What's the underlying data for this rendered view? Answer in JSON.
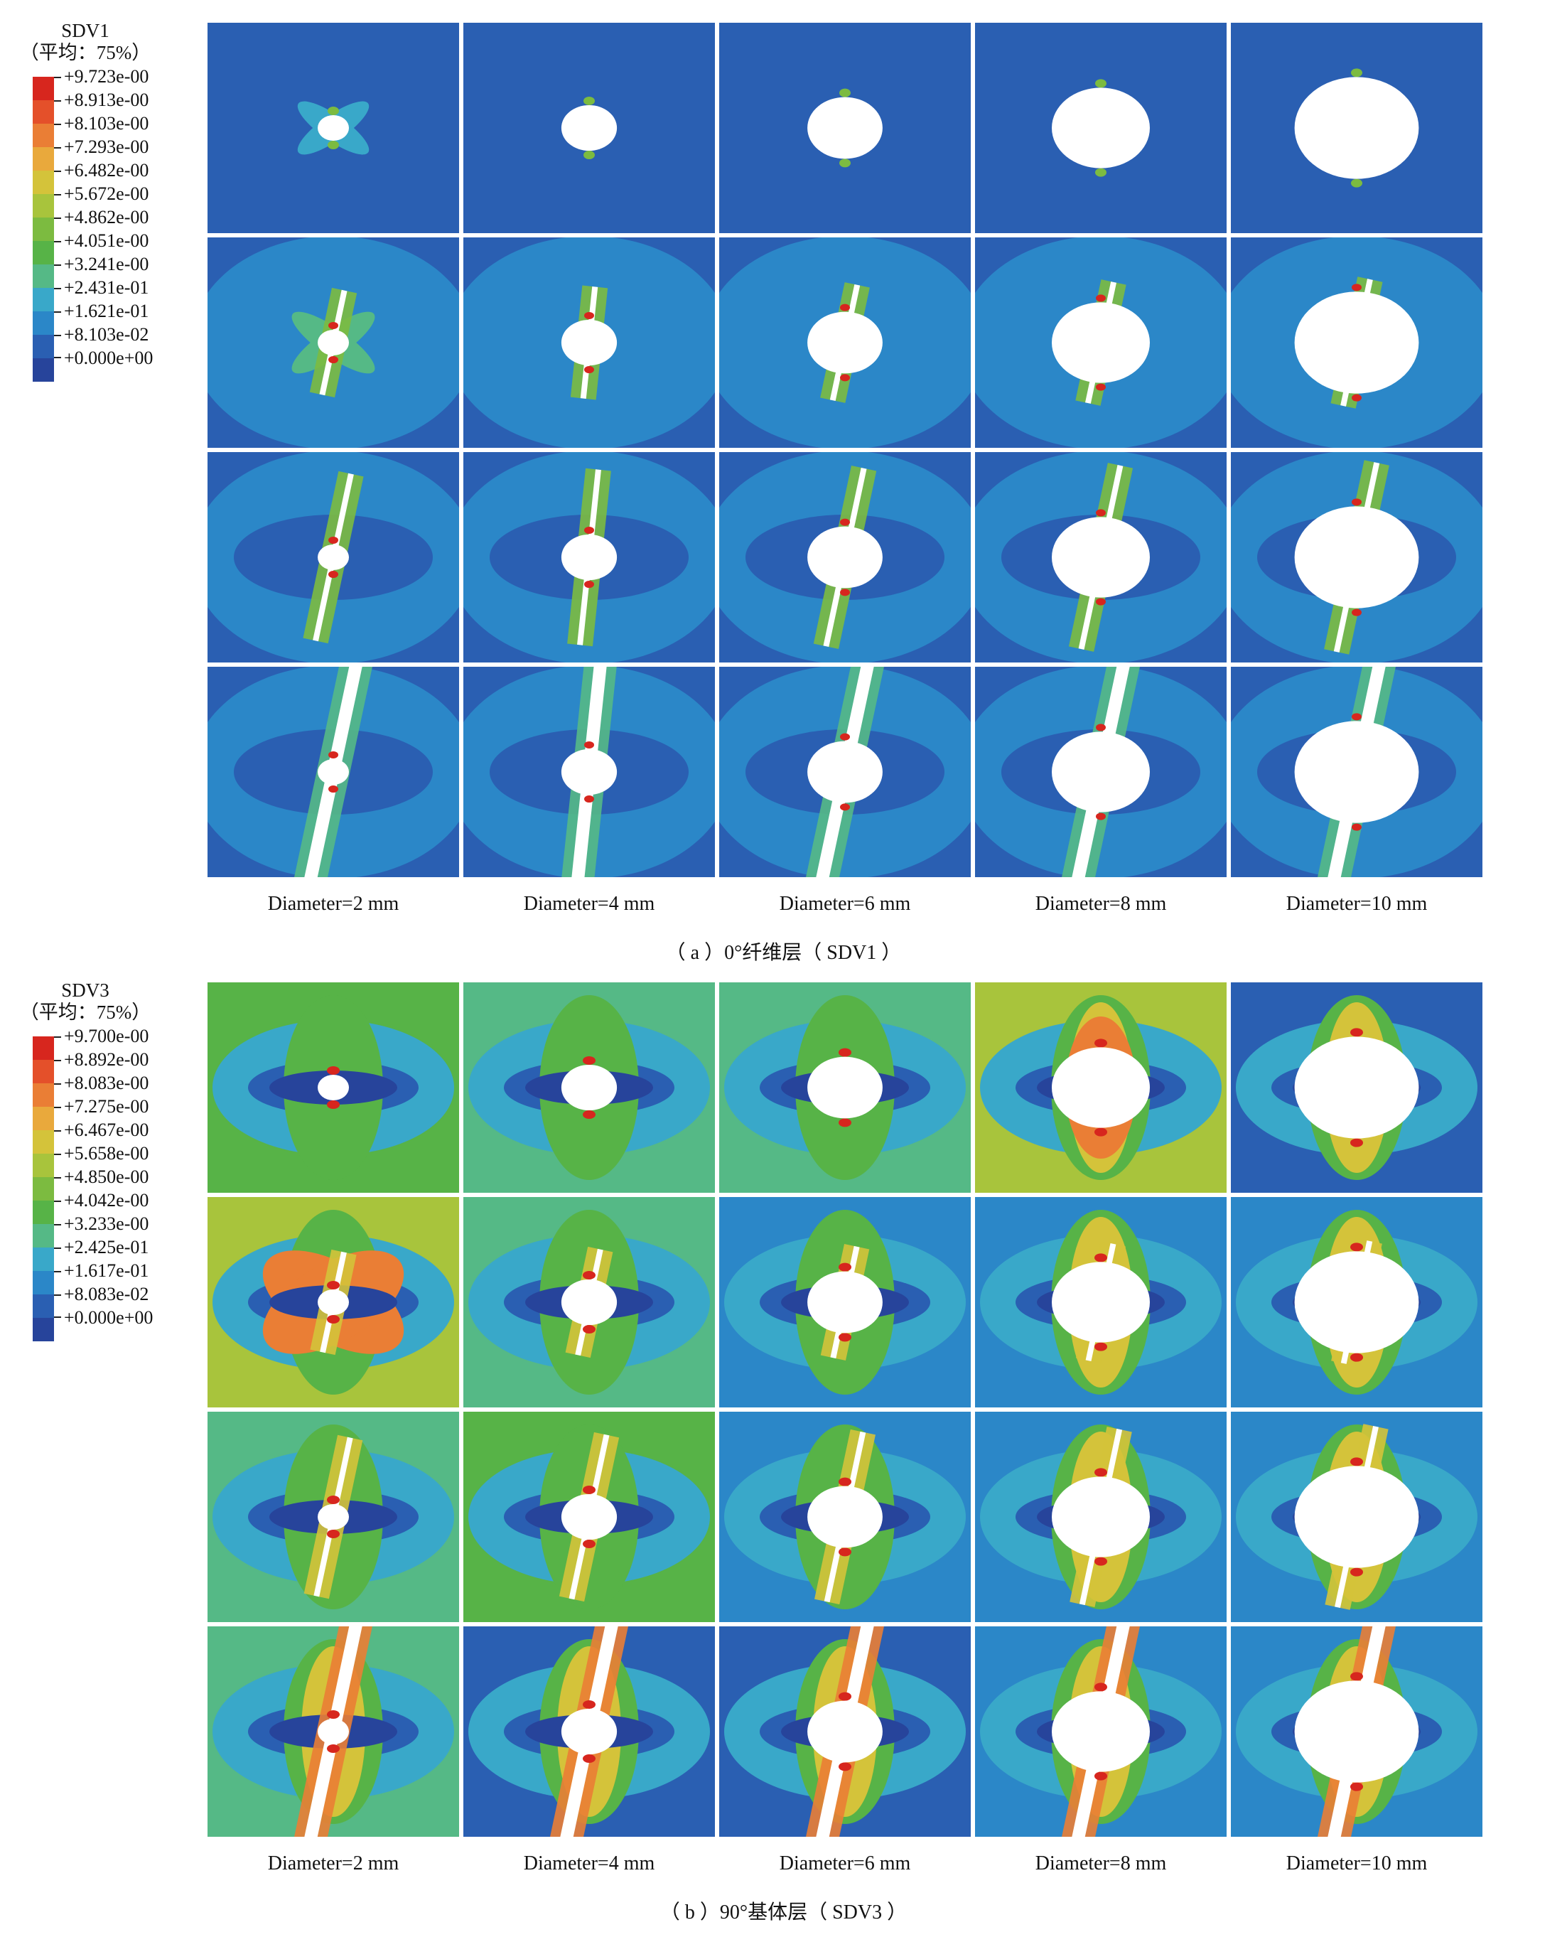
{
  "panels": [
    {
      "id": "a",
      "legend": {
        "name": "SDV1",
        "subtitle": "（平均：75%）",
        "values": [
          "+9.723e-00",
          "+8.913e-00",
          "+8.103e-00",
          "+7.293e-00",
          "+6.482e-00",
          "+5.672e-00",
          "+4.862e-00",
          "+4.051e-00",
          "+3.241e-00",
          "+2.431e-01",
          "+1.621e-01",
          "+8.103e-02",
          "+0.000e+00"
        ]
      },
      "columns": [
        "Diameter=2 mm",
        "Diameter=4 mm",
        "Diameter=6 mm",
        "Diameter=8 mm",
        "Diameter=10 mm"
      ],
      "caption": "（ a ）0°纤维层（ SDV1 ）"
    },
    {
      "id": "b",
      "legend": {
        "name": "SDV3",
        "subtitle": "（平均：75%）",
        "values": [
          "+9.700e-00",
          "+8.892e-00",
          "+8.083e-00",
          "+7.275e-00",
          "+6.467e-00",
          "+5.658e-00",
          "+4.850e-00",
          "+4.042e-00",
          "+3.233e-00",
          "+2.425e-01",
          "+1.617e-01",
          "+8.083e-02",
          "+0.000e+00"
        ]
      },
      "columns": [
        "Diameter=2 mm",
        "Diameter=4 mm",
        "Diameter=6 mm",
        "Diameter=8 mm",
        "Diameter=10 mm"
      ],
      "caption": "（ b ）90°基体层（ SDV3 ）"
    }
  ],
  "colormap": [
    "#d7261e",
    "#e4502a",
    "#ea7e35",
    "#e9a93c",
    "#d4c33a",
    "#a8c43c",
    "#7cbb40",
    "#57b347",
    "#55b986",
    "#39a8c9",
    "#2b87c8",
    "#2a5fb2",
    "#27449b"
  ]
}
